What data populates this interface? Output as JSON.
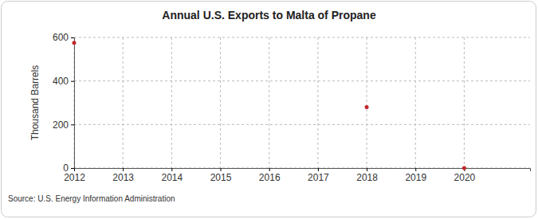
{
  "chart_data": {
    "type": "line",
    "title": "Annual U.S. Exports to Malta of Propane",
    "y_label": "Thousand Barrels",
    "source": "Source: U.S. Energy Information Administration",
    "x": [
      2012,
      2013,
      2014,
      2015,
      2016,
      2017,
      2018,
      2019,
      2020
    ],
    "values": [
      575,
      null,
      null,
      null,
      null,
      null,
      280,
      null,
      0
    ],
    "color": "#c0262c",
    "marker": "circle",
    "xlim": [
      2012,
      2021.35
    ],
    "xticks": [
      2012,
      2013,
      2014,
      2015,
      2016,
      2017,
      2018,
      2019,
      2020
    ],
    "ylim": [
      0,
      600
    ],
    "yticks": [
      0,
      200,
      400,
      600
    ],
    "grid": true
  }
}
